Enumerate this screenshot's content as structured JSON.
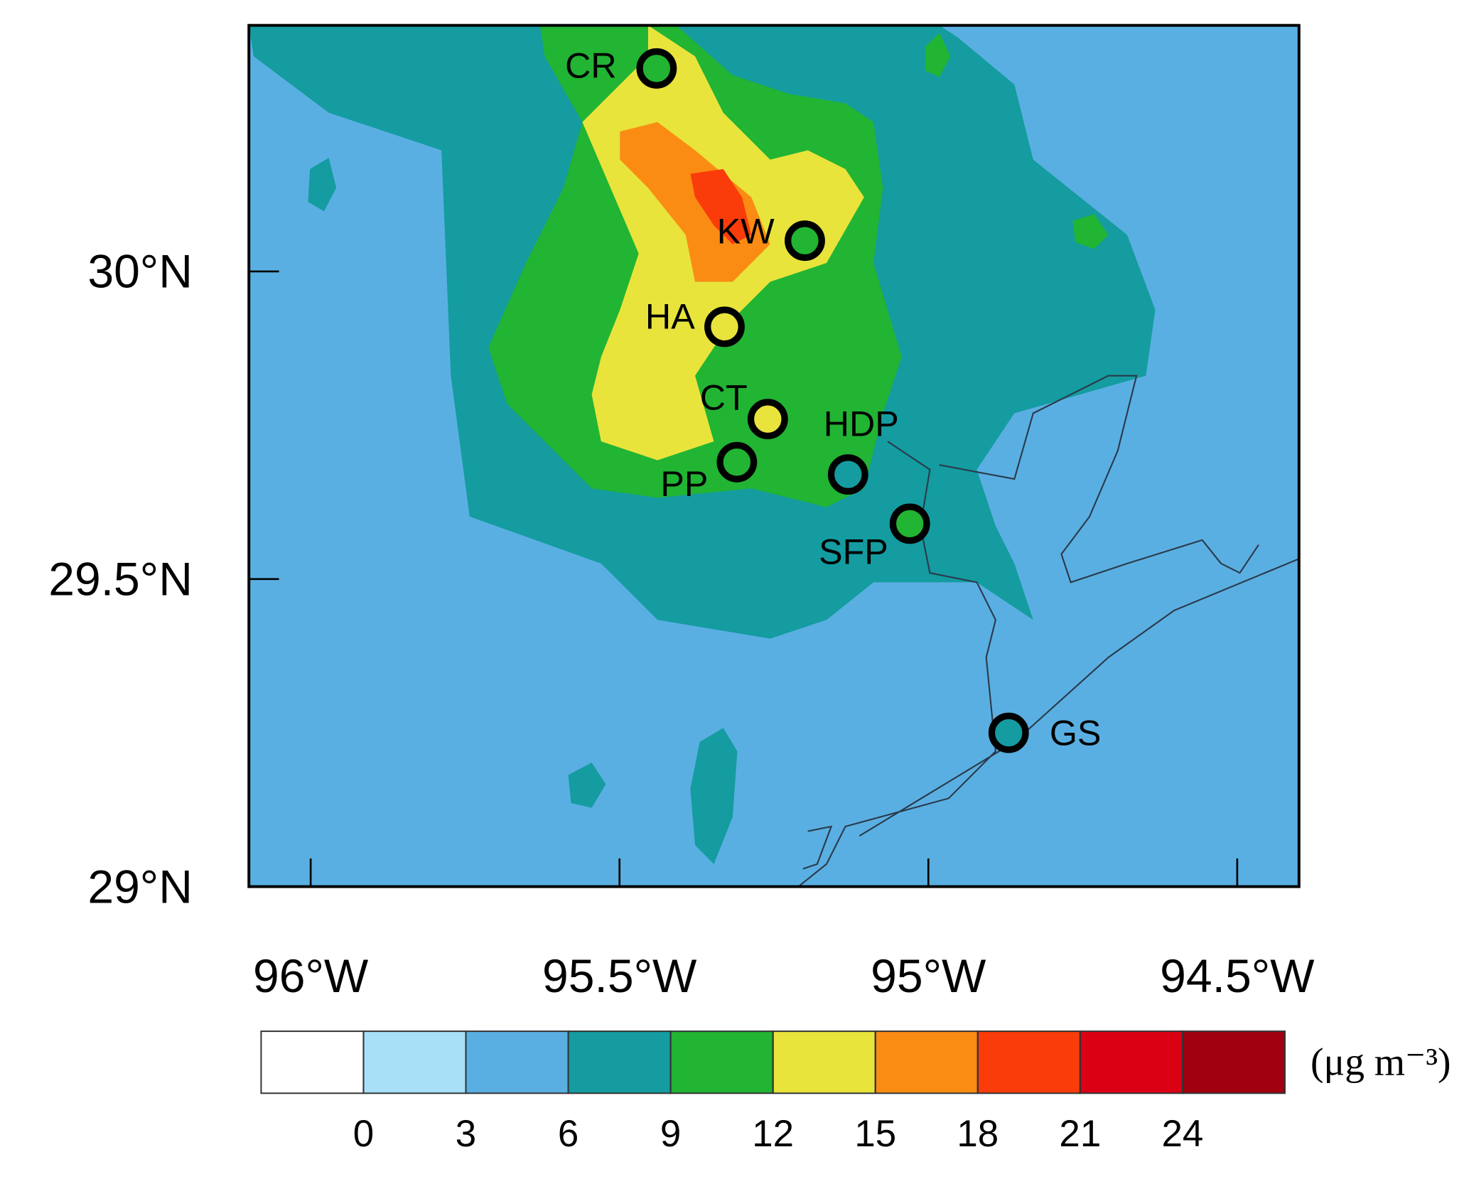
{
  "map": {
    "lonlim": [
      -96.1,
      -94.4
    ],
    "latlim": [
      29,
      30.4
    ],
    "lat_ticks": [
      {
        "value": 30,
        "label": "30°N"
      },
      {
        "value": 29.5,
        "label": "29.5°N"
      },
      {
        "value": 29,
        "label": "29°N"
      }
    ],
    "lon_ticks": [
      {
        "value": -96,
        "label": "96°W"
      },
      {
        "value": -95.5,
        "label": "95.5°W"
      },
      {
        "value": -95,
        "label": "95°W"
      },
      {
        "value": -94.5,
        "label": "94.5°W"
      }
    ],
    "stations": [
      {
        "name": "CR",
        "lon": -95.44,
        "lat": 30.33,
        "color": "#22b433"
      },
      {
        "name": "KW",
        "lon": -95.2,
        "lat": 30.05,
        "color": "#22b433"
      },
      {
        "name": "HA",
        "lon": -95.33,
        "lat": 29.91,
        "color": "#e8e43c"
      },
      {
        "name": "CT",
        "lon": -95.26,
        "lat": 29.76,
        "color": "#e8e43c"
      },
      {
        "name": "HDP",
        "lon": -95.13,
        "lat": 29.67,
        "color": "#149ca0"
      },
      {
        "name": "PP",
        "lon": -95.31,
        "lat": 29.69,
        "color": "#22b433"
      },
      {
        "name": "SFP",
        "lon": -95.03,
        "lat": 29.59,
        "color": "#22b433"
      },
      {
        "name": "GS",
        "lon": -94.87,
        "lat": 29.25,
        "color": "#149ca0"
      }
    ]
  },
  "colorbar": {
    "levels": [
      0,
      3,
      6,
      9,
      12,
      15,
      18,
      21,
      24
    ],
    "colors": [
      "#ffffff",
      "#a8e0f8",
      "#5aafe2",
      "#149ca0",
      "#22b433",
      "#e8e43c",
      "#fa8c14",
      "#fa3c0a",
      "#dc0014",
      "#a00010"
    ],
    "unit": "(μg m⁻³)"
  }
}
